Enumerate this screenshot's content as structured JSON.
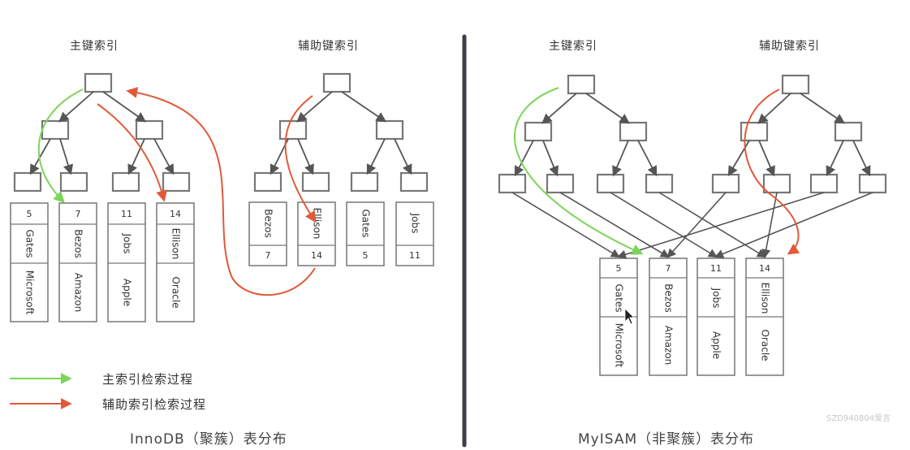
{
  "left": {
    "primary_title": "主键索引",
    "secondary_title": "辅助键索引",
    "primary_leaves": [
      {
        "id": "5",
        "name": "Gates",
        "company": "Microsoft"
      },
      {
        "id": "7",
        "name": "Bezos",
        "company": "Amazon"
      },
      {
        "id": "11",
        "name": "Jobs",
        "company": "Apple"
      },
      {
        "id": "14",
        "name": "Ellison",
        "company": "Oracle"
      }
    ],
    "secondary_leaves": [
      {
        "name": "Bezos",
        "id": "7"
      },
      {
        "name": "Ellison",
        "id": "14"
      },
      {
        "name": "Gates",
        "id": "5"
      },
      {
        "name": "Jobs",
        "id": "11"
      }
    ],
    "footer": "InnoDB（聚簇）表分布"
  },
  "right": {
    "primary_title": "主键索引",
    "secondary_title": "辅助键索引",
    "rows": [
      {
        "id": "5",
        "name": "Gates",
        "company": "Microsoft"
      },
      {
        "id": "7",
        "name": "Bezos",
        "company": "Amazon"
      },
      {
        "id": "11",
        "name": "Jobs",
        "company": "Apple"
      },
      {
        "id": "14",
        "name": "Ellison",
        "company": "Oracle"
      }
    ],
    "footer": "MyISAM（非聚簇）表分布"
  },
  "legend": [
    {
      "label": "主索引检索过程",
      "color": "#7dd45a"
    },
    {
      "label": "辅助索引检索过程",
      "color": "#e05a3a"
    }
  ],
  "watermark": "SZD940804爱言",
  "colors": {
    "node_stroke": "#777777",
    "edge": "#555555",
    "green": "#7dd45a",
    "red": "#e05a3a",
    "divider": "#3a3f4a"
  }
}
